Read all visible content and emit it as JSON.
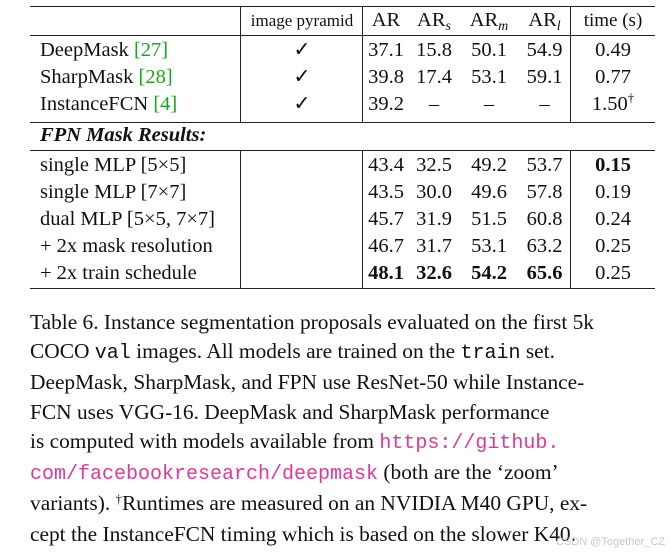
{
  "table": {
    "headers": {
      "image_pyramid": "image pyramid",
      "ar": "AR",
      "ar_s_base": "AR",
      "ar_s_sub": "s",
      "ar_m_base": "AR",
      "ar_m_sub": "m",
      "ar_l_base": "AR",
      "ar_l_sub": "l",
      "time": "time (s)"
    },
    "rows_top": [
      {
        "name": "DeepMask ",
        "ref": "[27]",
        "pyramid": "✓",
        "ar": "37.1",
        "ars": "15.8",
        "arm": "50.1",
        "arl": "54.9",
        "time": "0.49"
      },
      {
        "name": "SharpMask ",
        "ref": "[28]",
        "pyramid": "✓",
        "ar": "39.8",
        "ars": "17.4",
        "arm": "53.1",
        "arl": "59.1",
        "time": "0.77"
      },
      {
        "name": "InstanceFCN ",
        "ref": "[4]",
        "pyramid": "✓",
        "ar": "39.2",
        "ars": "–",
        "arm": "–",
        "arl": "–",
        "time": "1.50",
        "time_sup": "†"
      }
    ],
    "section_title": "FPN Mask Results:",
    "rows_fpn": [
      {
        "name": "single MLP [5×5]",
        "ar": "43.4",
        "ars": "32.5",
        "arm": "49.2",
        "arl": "53.7",
        "time": "0.15"
      },
      {
        "name": "single MLP [7×7]",
        "ar": "43.5",
        "ars": "30.0",
        "arm": "49.6",
        "arl": "57.8",
        "time": "0.19"
      },
      {
        "name": "dual MLP [5×5, 7×7]",
        "ar": "45.7",
        "ars": "31.9",
        "arm": "51.5",
        "arl": "60.8",
        "time": "0.24"
      },
      {
        "name": "+ 2x mask resolution",
        "ar": "46.7",
        "ars": "31.7",
        "arm": "53.1",
        "arl": "63.2",
        "time": "0.25"
      },
      {
        "name": "+ 2x train schedule",
        "ar": "48.1",
        "ars": "32.6",
        "arm": "54.2",
        "arl": "65.6",
        "time": "0.25"
      }
    ]
  },
  "caption": {
    "line1": "Table 6. Instance segmentation proposals evaluated on the first 5k",
    "line2a": "COCO ",
    "line2_code": "val",
    "line2b": " images.  All models are trained on the ",
    "line2_code2": "train",
    "line2c": " set.",
    "line3": "DeepMask, SharpMask, and FPN use ResNet-50 while Instance-",
    "line4": "FCN uses VGG-16.  DeepMask and SharpMask performance",
    "line5a": "is computed with models available from ",
    "line5_link": "https://github.",
    "line6_link": "com/facebookresearch/deepmask",
    "line6b": " (both are the ‘zoom’",
    "line7a": "variants). ",
    "line7_sup": "†",
    "line7b": "Runtimes are measured on an NVIDIA M40 GPU, ex-",
    "line8": "cept the InstanceFCN timing which is based on the slower K40."
  },
  "watermark": "CSDN @Together_CZ"
}
